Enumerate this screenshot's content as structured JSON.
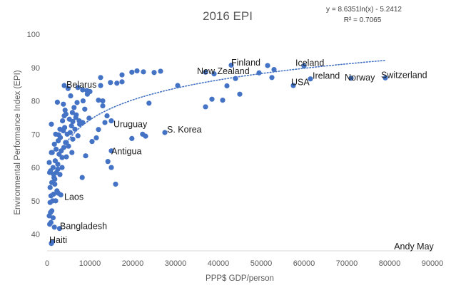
{
  "chart_data": {
    "type": "scatter",
    "title": "2016 EPI",
    "xlabel": "PPP$ GDP/person",
    "ylabel": "Environmental Performance Index (EPI)",
    "xlim": [
      0,
      90000
    ],
    "ylim": [
      35,
      100
    ],
    "x_ticks": [
      0,
      10000,
      20000,
      30000,
      40000,
      50000,
      60000,
      70000,
      80000,
      90000
    ],
    "x_tick_labels": [
      "0",
      "10000",
      "20000",
      "30000",
      "40000",
      "50000",
      "60000",
      "70000",
      "80000",
      "90000"
    ],
    "y_ticks": [
      40,
      50,
      60,
      70,
      80,
      90,
      100
    ],
    "y_tick_labels": [
      "40",
      "50",
      "60",
      "70",
      "80",
      "90",
      "100"
    ],
    "grid": false,
    "marker_color": "#4472c4",
    "trendline": {
      "type": "logarithmic",
      "a": 8.6351,
      "b": -5.2412,
      "x_range": [
        3000,
        79000
      ],
      "style": "dotted",
      "color": "#4472c4"
    },
    "trendline_equation": "y = 8.6351ln(x) - 5.2412",
    "r_squared": "R² = 0.7065",
    "credit": "Andy May",
    "annotations": [
      {
        "text": "Finland",
        "x": 43000,
        "y": 90.6
      },
      {
        "text": "Iceland",
        "x": 58000,
        "y": 90.5
      },
      {
        "text": "New Zealand",
        "x": 35000,
        "y": 88.0
      },
      {
        "text": "Ireland",
        "x": 62000,
        "y": 86.6
      },
      {
        "text": "Belarus",
        "x": 4500,
        "y": 84.0
      },
      {
        "text": "Norway",
        "x": 69500,
        "y": 86.1
      },
      {
        "text": "Switzerland",
        "x": 78000,
        "y": 86.9
      },
      {
        "text": "USA",
        "x": 57000,
        "y": 84.7
      },
      {
        "text": "Uruguay",
        "x": 15500,
        "y": 72.1
      },
      {
        "text": "S. Korea",
        "x": 28000,
        "y": 70.5
      },
      {
        "text": "Antigua",
        "x": 15000,
        "y": 64.0
      },
      {
        "text": "Laos",
        "x": 4000,
        "y": 50.3
      },
      {
        "text": "Bangladesh",
        "x": 3000,
        "y": 41.5
      },
      {
        "text": "Haiti",
        "x": 500,
        "y": 37.3
      }
    ],
    "points": [
      [
        1000,
        37.2
      ],
      [
        1200,
        37.7
      ],
      [
        600,
        43
      ],
      [
        900,
        43.5
      ],
      [
        500,
        45.5
      ],
      [
        800,
        46.5
      ],
      [
        1100,
        47
      ],
      [
        2900,
        41.7
      ],
      [
        1700,
        42.1
      ],
      [
        1400,
        44.9
      ],
      [
        700,
        49.5
      ],
      [
        1300,
        50
      ],
      [
        2000,
        50
      ],
      [
        900,
        51.5
      ],
      [
        1500,
        52
      ],
      [
        2600,
        52.3
      ],
      [
        3200,
        51.8
      ],
      [
        2300,
        53
      ],
      [
        700,
        54
      ],
      [
        1100,
        55.5
      ],
      [
        1800,
        56.5
      ],
      [
        1600,
        57
      ],
      [
        3000,
        57.9
      ],
      [
        2200,
        58.5
      ],
      [
        800,
        59
      ],
      [
        1400,
        60
      ],
      [
        2500,
        61
      ],
      [
        1900,
        62
      ],
      [
        3500,
        63
      ],
      [
        4500,
        63.2
      ],
      [
        2800,
        64
      ],
      [
        1200,
        64.5
      ],
      [
        3300,
        65
      ],
      [
        2100,
        65.5
      ],
      [
        3900,
        66
      ],
      [
        5000,
        66.4
      ],
      [
        1700,
        67
      ],
      [
        4300,
        67.5
      ],
      [
        2600,
        68
      ],
      [
        6000,
        68.5
      ],
      [
        3100,
        69
      ],
      [
        7200,
        69.5
      ],
      [
        4700,
        70
      ],
      [
        5400,
        70.5
      ],
      [
        3800,
        71
      ],
      [
        6500,
        71.5
      ],
      [
        4100,
        72
      ],
      [
        5700,
        72.5
      ],
      [
        7600,
        73
      ],
      [
        8300,
        73.5
      ],
      [
        3600,
        74
      ],
      [
        5200,
        74.5
      ],
      [
        6700,
        75
      ],
      [
        4400,
        76
      ],
      [
        5900,
        76.5
      ],
      [
        8800,
        77.5
      ],
      [
        4200,
        77.2
      ],
      [
        6300,
        78
      ],
      [
        3800,
        79
      ],
      [
        7000,
        79.5
      ],
      [
        8400,
        80
      ],
      [
        2400,
        79.6
      ],
      [
        5500,
        81.5
      ],
      [
        9400,
        82
      ],
      [
        12000,
        80.2
      ],
      [
        4900,
        83.7
      ],
      [
        8300,
        83.3
      ],
      [
        9300,
        83.1
      ],
      [
        7200,
        84
      ],
      [
        4000,
        84.6
      ],
      [
        8200,
        57
      ],
      [
        9000,
        63.5
      ],
      [
        10500,
        67.8
      ],
      [
        12000,
        71.4
      ],
      [
        13500,
        73.5
      ],
      [
        14200,
        61.8
      ],
      [
        15000,
        60
      ],
      [
        16000,
        55
      ],
      [
        15000,
        65
      ],
      [
        14000,
        75.5
      ],
      [
        13000,
        80
      ],
      [
        12500,
        87
      ],
      [
        14800,
        85.5
      ],
      [
        16300,
        85.3
      ],
      [
        17500,
        85.7
      ],
      [
        19800,
        88.6
      ],
      [
        17500,
        87.8
      ],
      [
        21000,
        89
      ],
      [
        22500,
        88.7
      ],
      [
        25000,
        88.5
      ],
      [
        26500,
        88.9
      ],
      [
        19800,
        68.7
      ],
      [
        22300,
        70
      ],
      [
        23000,
        69.4
      ],
      [
        23800,
        79.3
      ],
      [
        27500,
        70.5
      ],
      [
        30500,
        84.6
      ],
      [
        37000,
        78.2
      ],
      [
        38500,
        80.5
      ],
      [
        39000,
        88.1
      ],
      [
        41000,
        80.2
      ],
      [
        42000,
        84.5
      ],
      [
        44000,
        86.7
      ],
      [
        45000,
        82
      ],
      [
        43000,
        90.7
      ],
      [
        37000,
        88.6
      ],
      [
        49500,
        88.4
      ],
      [
        51500,
        90.6
      ],
      [
        52500,
        87
      ],
      [
        53000,
        89.4
      ],
      [
        57500,
        84.6
      ],
      [
        60000,
        90.5
      ],
      [
        61500,
        86.6
      ],
      [
        71000,
        86.8
      ],
      [
        79000,
        86.9
      ],
      [
        10000,
        82.8
      ],
      [
        11500,
        68.9
      ],
      [
        13000,
        78.5
      ],
      [
        2000,
        70
      ],
      [
        3000,
        71.5
      ],
      [
        6000,
        73.8
      ],
      [
        2500,
        59.5
      ],
      [
        1800,
        55
      ],
      [
        4500,
        67.5
      ],
      [
        5800,
        64.5
      ],
      [
        7500,
        74
      ],
      [
        9800,
        74.8
      ],
      [
        12500,
        84.6
      ],
      [
        15000,
        74
      ],
      [
        1000,
        73
      ],
      [
        500,
        61.5
      ],
      [
        2700,
        69.8
      ],
      [
        3500,
        60
      ],
      [
        4000,
        75.5
      ],
      [
        6800,
        75.8
      ],
      [
        1000,
        64.5
      ],
      [
        1500,
        58
      ],
      [
        600,
        58.5
      ]
    ]
  }
}
